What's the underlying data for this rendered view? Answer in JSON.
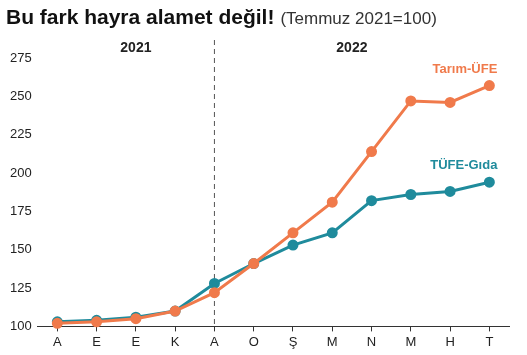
{
  "chart_data": {
    "type": "line",
    "title": "Bu fark hayra alamet değil!",
    "subtitle": "(Temmuz 2021=100)",
    "annotations": [
      "2021",
      "2022"
    ],
    "categories": [
      "A",
      "E",
      "E",
      "K",
      "A",
      "O",
      "Ş",
      "M",
      "N",
      "M",
      "H",
      "T"
    ],
    "series": [
      {
        "name": "Tarım-ÜFE",
        "color": "#f07a4b",
        "marker": "circle",
        "line_style": "solid",
        "values": [
          102,
          103,
          105,
          110,
          122,
          141,
          161,
          181,
          214,
          247,
          246,
          257
        ]
      },
      {
        "name": "TÜFE-Gıda",
        "color": "#1f8b9c",
        "marker": "circle",
        "line_style": "solid",
        "values": [
          103,
          104,
          106,
          110,
          128,
          141,
          153,
          161,
          182,
          186,
          188,
          194
        ]
      }
    ],
    "ylim": [
      100,
      275
    ],
    "yticks": [
      100,
      125,
      150,
      175,
      200,
      225,
      250,
      275
    ],
    "grid": false
  }
}
